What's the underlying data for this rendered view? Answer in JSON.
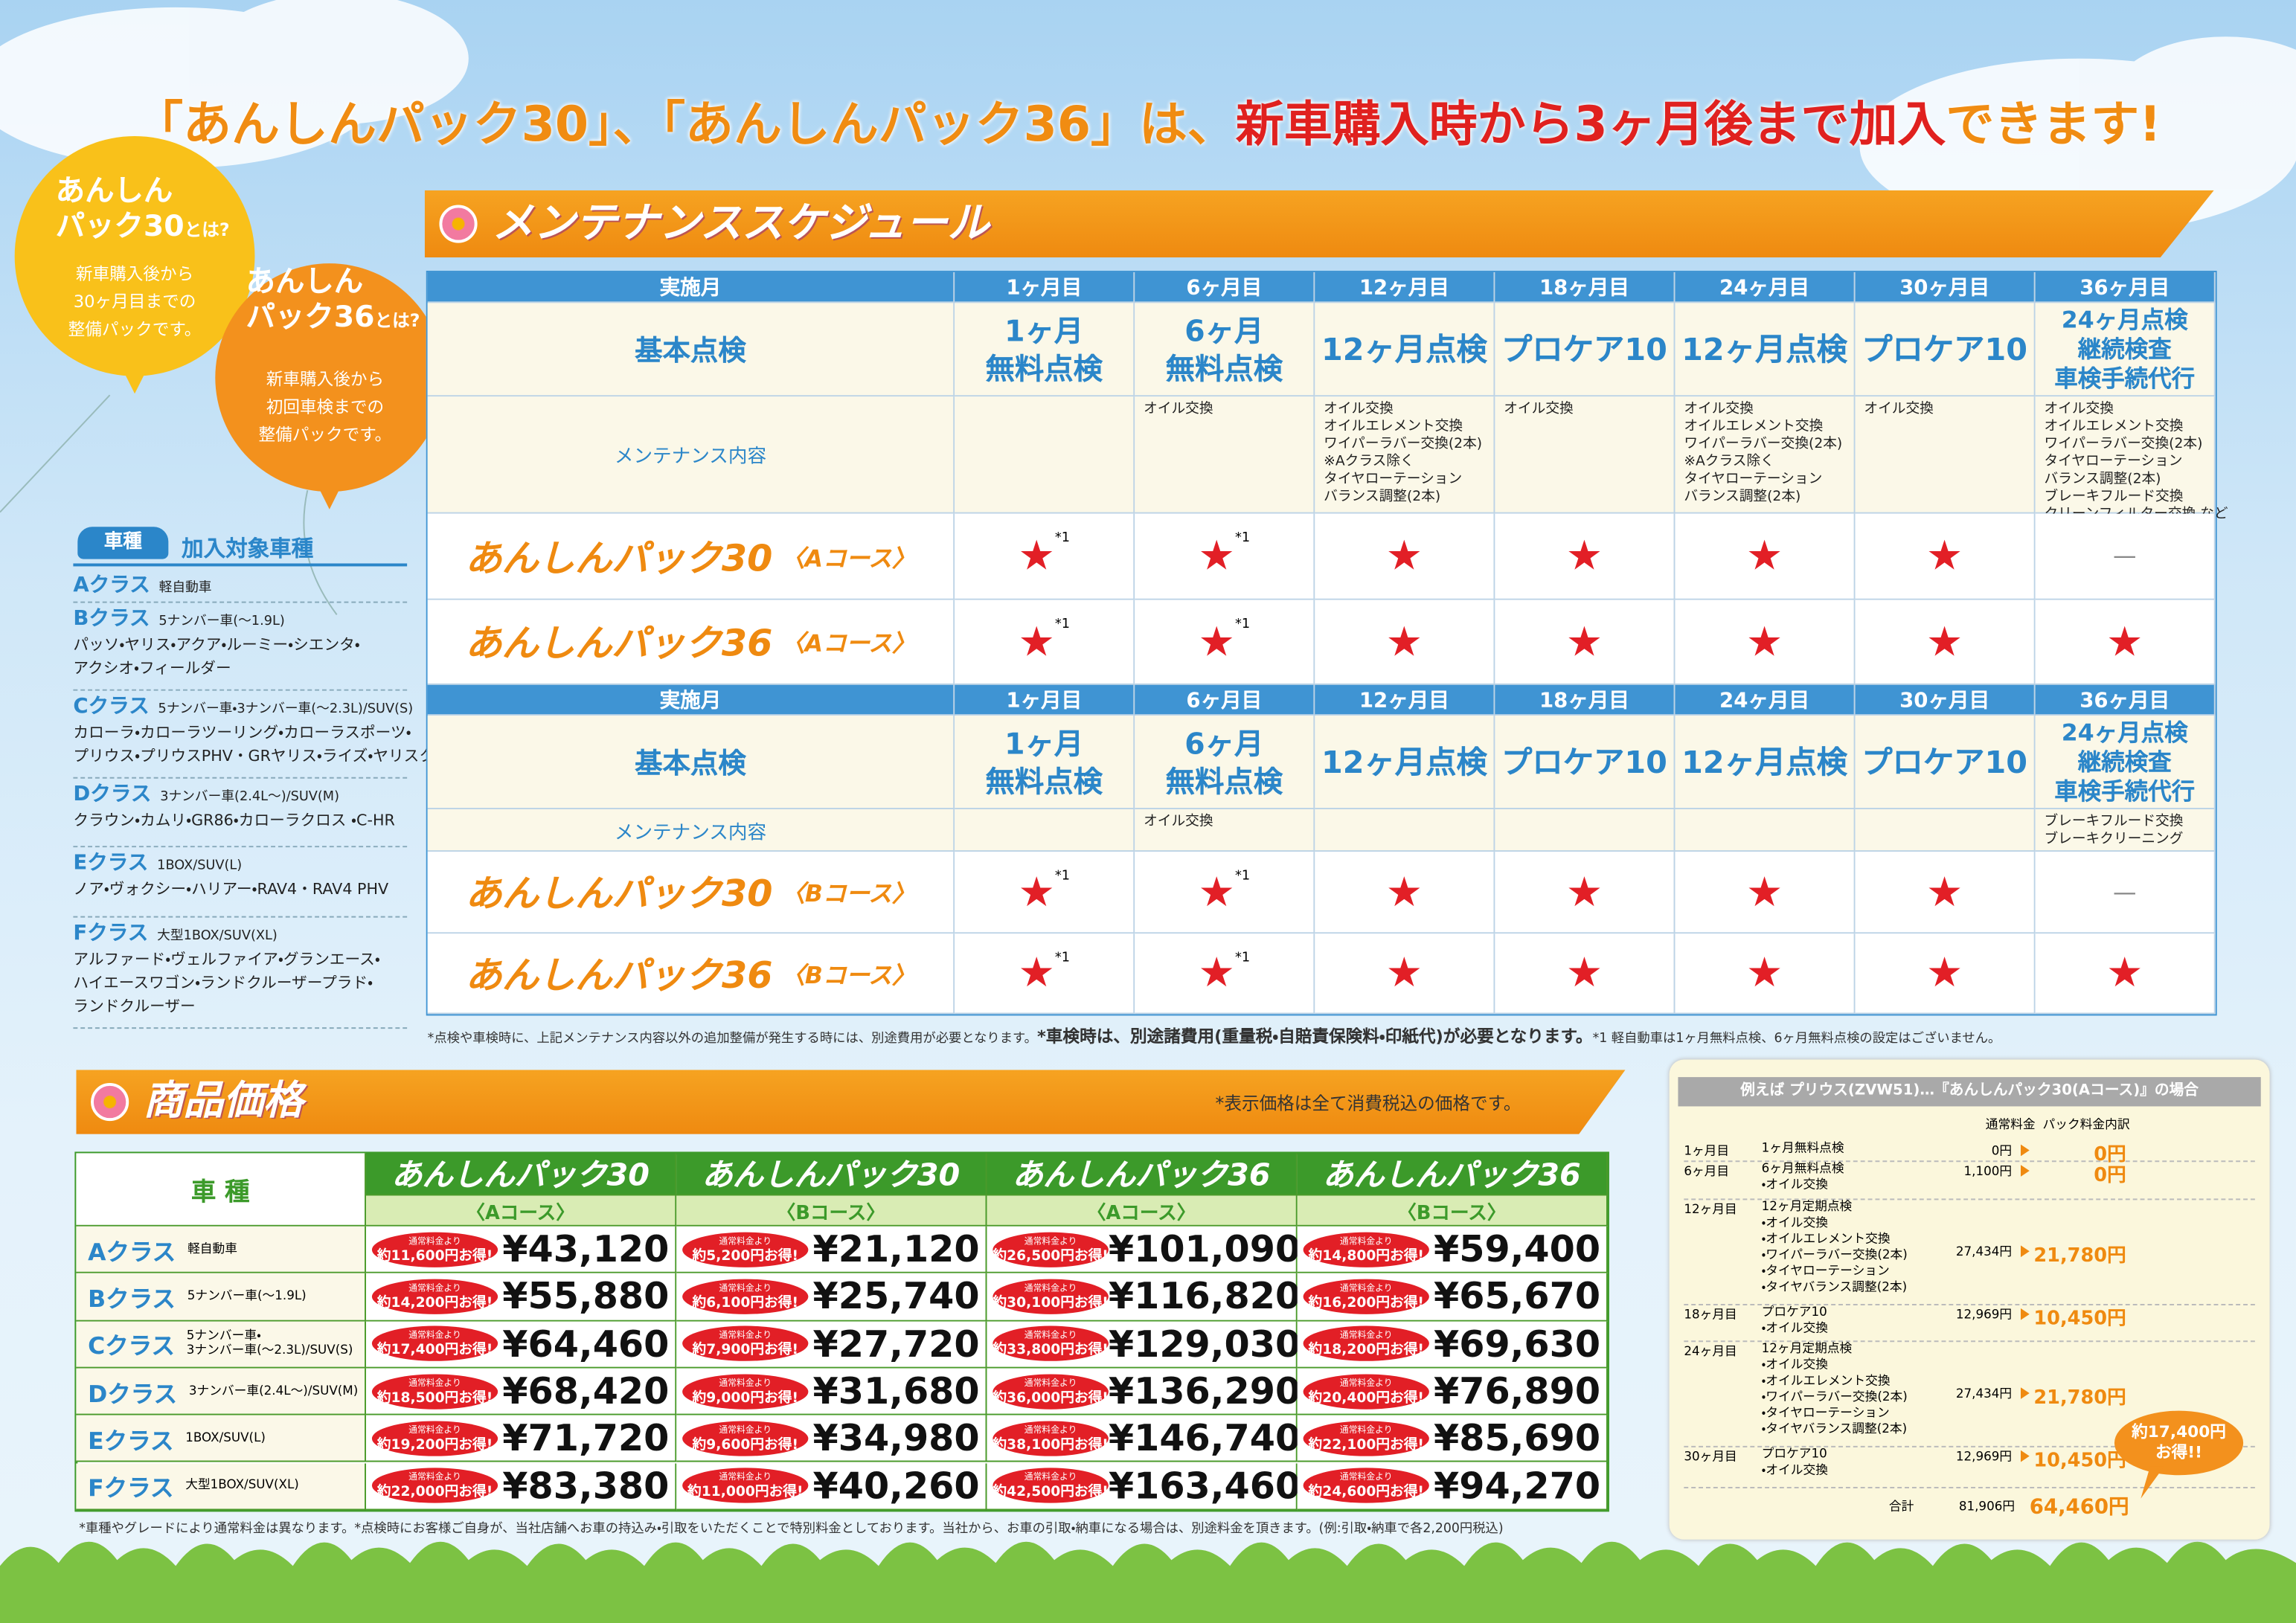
{
  "headline": {
    "parts": [
      "「あんしんパック30」、「あんしんパック36」は、",
      "新車購入時から3ヶ月後まで加入",
      "できます!"
    ]
  },
  "balloons": [
    {
      "title": [
        "あんしん",
        "パック30",
        "とは?"
      ],
      "text": [
        "新車購入後から",
        "30ヶ月目までの",
        "整備パックです。"
      ]
    },
    {
      "title": [
        "あんしん",
        "パック36",
        "とは?"
      ],
      "text": [
        "新車購入後から",
        "初回車検までの",
        "整備パックです。"
      ]
    }
  ],
  "vehicles": {
    "badge": "車種",
    "title": "加入対象車種",
    "classes": [
      {
        "name": "Aクラス",
        "spec": "軽自動車"
      },
      {
        "name": "Bクラス",
        "spec": "5ナンバー車(〜1.9L)",
        "models": [
          "パッソ・ヤリス・アクア・ルーミー・シエンタ・",
          "アクシオ・フィールダー"
        ]
      },
      {
        "name": "Cクラス",
        "spec": "5ナンバー車・3ナンバー車(〜2.3L)/SUV(S)",
        "models": [
          "カローラ・カローラツーリング・カローラスポーツ・",
          "プリウス・プリウスPHV・GRヤリス・ライズ・ヤリスクロス"
        ]
      },
      {
        "name": "Dクラス",
        "spec": "3ナンバー車(2.4L〜)/SUV(M)",
        "models": [
          "クラウン・カムリ・GR86・カローラクロス ・C-HR"
        ]
      },
      {
        "name": "Eクラス",
        "spec": "1BOX/SUV(L)",
        "models": [
          "ノア・ヴォクシー・ハリアー・RAV4・RAV4 PHV"
        ]
      },
      {
        "name": "Fクラス",
        "spec": "大型1BOX/SUV(XL)",
        "models": [
          "アルファード・ヴェルファイア・グランエース・",
          "ハイエースワゴン・ランドクルーザープラド・",
          "ランドクルーザー"
        ]
      }
    ]
  },
  "schedule": {
    "title": "メンテナンススケジュール",
    "tables": [
      {
        "header_label": "実施月",
        "months": [
          "1ヶ月目",
          "6ヶ月目",
          "12ヶ月目",
          "18ヶ月目",
          "24ヶ月目",
          "30ヶ月目",
          "36ヶ月目"
        ],
        "basic_label": "基本点検",
        "basic": [
          [
            "1ヶ月",
            "無料点検"
          ],
          [
            "6ヶ月",
            "無料点検"
          ],
          [
            "12ヶ月点検"
          ],
          [
            "プロケア10"
          ],
          [
            "12ヶ月点検"
          ],
          [
            "プロケア10"
          ],
          [
            "24ヶ月点検",
            "継続検査",
            "車検手続代行"
          ]
        ],
        "maintenance_label": "メンテナンス内容",
        "maintenance": [
          [],
          [
            "オイル交換"
          ],
          [
            "オイル交換",
            "オイルエレメント交換",
            "ワイパーラバー交換(2本)",
            "※Aクラス除く",
            "タイヤローテーション",
            "バランス調整(2本)"
          ],
          [
            "オイル交換"
          ],
          [
            "オイル交換",
            "オイルエレメント交換",
            "ワイパーラバー交換(2本)",
            "※Aクラス除く",
            "タイヤローテーション",
            "バランス調整(2本)"
          ],
          [
            "オイル交換"
          ],
          [
            "オイル交換",
            "オイルエレメント交換",
            "ワイパーラバー交換(2本)",
            "タイヤローテーション",
            "バランス調整(2本)",
            "ブレーキフルード交換",
            "クリーンフィルター交換 など"
          ]
        ],
        "packs": [
          {
            "name": "あんしんパック30",
            "course": "〈Aコース〉",
            "cells": [
              {
                "mark": "★",
                "note": "*1"
              },
              {
                "mark": "★",
                "note": "*1"
              },
              {
                "mark": "★"
              },
              {
                "mark": "★"
              },
              {
                "mark": "★"
              },
              {
                "mark": "★"
              },
              {
                "mark": "—"
              }
            ]
          },
          {
            "name": "あんしんパック36",
            "course": "〈Aコース〉",
            "cells": [
              {
                "mark": "★",
                "note": "*1"
              },
              {
                "mark": "★",
                "note": "*1"
              },
              {
                "mark": "★"
              },
              {
                "mark": "★"
              },
              {
                "mark": "★"
              },
              {
                "mark": "★"
              },
              {
                "mark": "★"
              }
            ]
          }
        ]
      },
      {
        "header_label": "実施月",
        "months": [
          "1ヶ月目",
          "6ヶ月目",
          "12ヶ月目",
          "18ヶ月目",
          "24ヶ月目",
          "30ヶ月目",
          "36ヶ月目"
        ],
        "basic_label": "基本点検",
        "basic": [
          [
            "1ヶ月",
            "無料点検"
          ],
          [
            "6ヶ月",
            "無料点検"
          ],
          [
            "12ヶ月点検"
          ],
          [
            "プロケア10"
          ],
          [
            "12ヶ月点検"
          ],
          [
            "プロケア10"
          ],
          [
            "24ヶ月点検",
            "継続検査",
            "車検手続代行"
          ]
        ],
        "maintenance_label": "メンテナンス内容",
        "maintenance": [
          [],
          [
            "オイル交換"
          ],
          [],
          [],
          [],
          [],
          [
            "ブレーキフルード交換",
            "ブレーキクリーニング"
          ]
        ],
        "packs": [
          {
            "name": "あんしんパック30",
            "course": "〈Bコース〉",
            "cells": [
              {
                "mark": "★",
                "note": "*1"
              },
              {
                "mark": "★",
                "note": "*1"
              },
              {
                "mark": "★"
              },
              {
                "mark": "★"
              },
              {
                "mark": "★"
              },
              {
                "mark": "★"
              },
              {
                "mark": "—"
              }
            ]
          },
          {
            "name": "あんしんパック36",
            "course": "〈Bコース〉",
            "cells": [
              {
                "mark": "★",
                "note": "*1"
              },
              {
                "mark": "★",
                "note": "*1"
              },
              {
                "mark": "★"
              },
              {
                "mark": "★"
              },
              {
                "mark": "★"
              },
              {
                "mark": "★"
              },
              {
                "mark": "★"
              }
            ]
          }
        ]
      }
    ],
    "notes": [
      "*点検や車検時に、上記メンテナンス内容以外の追加整備が発生する時には、別途費用が必要となります。",
      "*車検時は、別途諸費用(重量税・自賠責保険料・印紙代)が必要となります。",
      "*1 軽自動車は1ヶ月無料点検、6ヶ月無料点検の設定はございません。"
    ]
  },
  "prices": {
    "title": "商品価格",
    "tax_note": "*表示価格は全て消費税込の価格です。",
    "header": "車 種",
    "badge_label": "通常料金より",
    "columns": [
      {
        "name": "あんしんパック30",
        "course": "〈Aコース〉"
      },
      {
        "name": "あんしんパック30",
        "course": "〈Bコース〉"
      },
      {
        "name": "あんしんパック36",
        "course": "〈Aコース〉"
      },
      {
        "name": "あんしんパック36",
        "course": "〈Bコース〉"
      }
    ],
    "rows": [
      {
        "name": "Aクラス",
        "spec": [
          "軽自動車"
        ],
        "cells": [
          {
            "saving": "約11,600円お得!",
            "price": "¥43,120"
          },
          {
            "saving": "約5,200円お得!",
            "price": "¥21,120"
          },
          {
            "saving": "約26,500円お得!",
            "price": "¥101,090"
          },
          {
            "saving": "約14,800円お得!",
            "price": "¥59,400"
          }
        ]
      },
      {
        "name": "Bクラス",
        "spec": [
          "5ナンバー車(〜1.9L)"
        ],
        "cells": [
          {
            "saving": "約14,200円お得!",
            "price": "¥55,880"
          },
          {
            "saving": "約6,100円お得!",
            "price": "¥25,740"
          },
          {
            "saving": "約30,100円お得!",
            "price": "¥116,820"
          },
          {
            "saving": "約16,200円お得!",
            "price": "¥65,670"
          }
        ]
      },
      {
        "name": "Cクラス",
        "spec": [
          "5ナンバー車・",
          "3ナンバー車(〜2.3L)/SUV(S)"
        ],
        "cells": [
          {
            "saving": "約17,400円お得!",
            "price": "¥64,460"
          },
          {
            "saving": "約7,900円お得!",
            "price": "¥27,720"
          },
          {
            "saving": "約33,800円お得!",
            "price": "¥129,030"
          },
          {
            "saving": "約18,200円お得!",
            "price": "¥69,630"
          }
        ]
      },
      {
        "name": "Dクラス",
        "spec": [
          "3ナンバー車(2.4L〜)/SUV(M)"
        ],
        "cells": [
          {
            "saving": "約18,500円お得!",
            "price": "¥68,420"
          },
          {
            "saving": "約9,000円お得!",
            "price": "¥31,680"
          },
          {
            "saving": "約36,000円お得!",
            "price": "¥136,290"
          },
          {
            "saving": "約20,400円お得!",
            "price": "¥76,890"
          }
        ]
      },
      {
        "name": "Eクラス",
        "spec": [
          "1BOX/SUV(L)"
        ],
        "cells": [
          {
            "saving": "約19,200円お得!",
            "price": "¥71,720"
          },
          {
            "saving": "約9,600円お得!",
            "price": "¥34,980"
          },
          {
            "saving": "約38,100円お得!",
            "price": "¥146,740"
          },
          {
            "saving": "約22,100円お得!",
            "price": "¥85,690"
          }
        ]
      },
      {
        "name": "Fクラス",
        "spec": [
          "大型1BOX/SUV(XL)"
        ],
        "cells": [
          {
            "saving": "約22,000円お得!",
            "price": "¥83,380"
          },
          {
            "saving": "約11,000円お得!",
            "price": "¥40,260"
          },
          {
            "saving": "約42,500円お得!",
            "price": "¥163,460"
          },
          {
            "saving": "約24,600円お得!",
            "price": "¥94,270"
          }
        ]
      }
    ],
    "footnote": "*車種やグレードにより通常料金は異なります。*点検時にお客様ご自身が、当社店舗へお車の持込み・引取をいただくことで特別料金としております。当社から、お車の引取・納車になる場合は、別途料金を頂きます。(例:引取・納車で各2,200円税込)"
  },
  "example": {
    "title": "例えば プリウス(ZVW51)…『あんしんパック30(Aコース)』の場合",
    "columns": [
      "通常料金",
      "パック料金内訳"
    ],
    "rows": [
      {
        "month": "1ヶ月目",
        "item": "1ヶ月無料点検",
        "details": [],
        "normal": "0円",
        "pack": "0円"
      },
      {
        "month": "6ヶ月目",
        "item": "6ヶ月無料点検",
        "details": [
          "・オイル交換"
        ],
        "normal": "1,100円",
        "pack": "0円"
      },
      {
        "month": "12ヶ月目",
        "item": "12ヶ月定期点検",
        "details": [
          "・オイル交換",
          "・オイルエレメント交換",
          "・ワイパーラバー交換(2本)",
          "・タイヤローテーション",
          "・タイヤバランス調整(2本)"
        ],
        "normal": "27,434円",
        "pack": "21,780円"
      },
      {
        "month": "18ヶ月目",
        "item": "プロケア10",
        "details": [
          "・オイル交換"
        ],
        "normal": "12,969円",
        "pack": "10,450円"
      },
      {
        "month": "24ヶ月目",
        "item": "12ヶ月定期点検",
        "details": [
          "・オイル交換",
          "・オイルエレメント交換",
          "・ワイパーラバー交換(2本)",
          "・タイヤローテーション",
          "・タイヤバランス調整(2本)"
        ],
        "normal": "27,434円",
        "pack": "21,780円"
      },
      {
        "month": "30ヶ月目",
        "item": "プロケア10",
        "details": [
          "・オイル交換"
        ],
        "normal": "12,969円",
        "pack": "10,450円"
      }
    ],
    "total": {
      "label": "合計",
      "normal": "81,906円",
      "pack": "64,460円"
    },
    "saving": [
      "約17,400円",
      "お得!!"
    ]
  }
}
